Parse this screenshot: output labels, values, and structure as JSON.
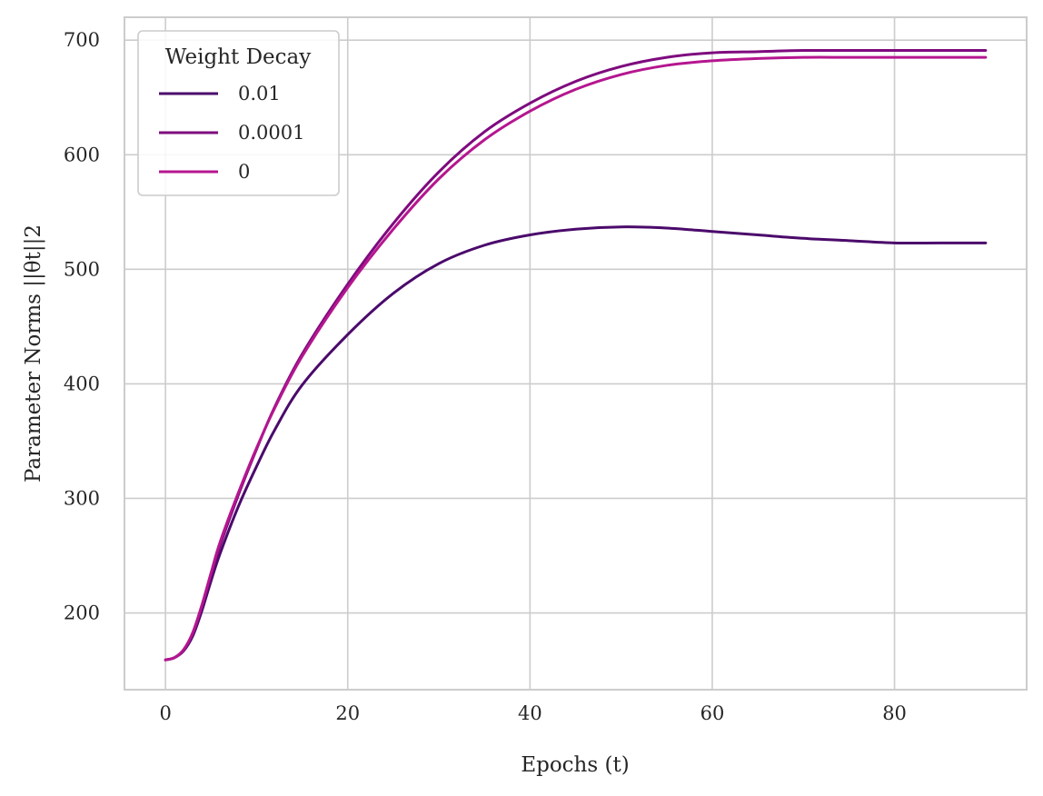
{
  "chart_data": {
    "type": "line",
    "title": "",
    "xlabel": "Epochs (t)",
    "ylabel": "Parameter Norms ||θt||2",
    "xlim": [
      -4.5,
      94.5
    ],
    "ylim": [
      133,
      720
    ],
    "xticks": [
      0,
      20,
      40,
      60,
      80
    ],
    "xtick_labels": [
      "0",
      "20",
      "40",
      "60",
      "80"
    ],
    "yticks": [
      200,
      300,
      400,
      500,
      600,
      700
    ],
    "ytick_labels": [
      "200",
      "300",
      "400",
      "500",
      "600",
      "700"
    ],
    "grid": true,
    "legend": {
      "title": "Weight Decay",
      "placement": "top-left"
    },
    "x": [
      0,
      1,
      2,
      3,
      4,
      5,
      6,
      8,
      10,
      12,
      15,
      20,
      25,
      30,
      35,
      40,
      45,
      50,
      55,
      60,
      65,
      70,
      75,
      80,
      85,
      90
    ],
    "series": [
      {
        "name": "0.01",
        "color": "#4b0a6b",
        "values": [
          159,
          161,
          167,
          180,
          202,
          228,
          252,
          293,
          328,
          360,
          399,
          443,
          479,
          505,
          521,
          530,
          535,
          537,
          536,
          533,
          530,
          527,
          525,
          523,
          523,
          523
        ]
      },
      {
        "name": "0.0001",
        "color": "#7e0a7e",
        "values": [
          159,
          161,
          168,
          182,
          206,
          233,
          259,
          303,
          343,
          380,
          426,
          487,
          540,
          585,
          620,
          645,
          664,
          677,
          685,
          689,
          690,
          691,
          691,
          691,
          691,
          691
        ]
      },
      {
        "name": "0",
        "color": "#b5168f",
        "values": [
          159,
          161,
          168,
          183,
          207,
          235,
          262,
          305,
          344,
          379,
          424,
          484,
          535,
          579,
          613,
          638,
          657,
          670,
          678,
          682,
          684,
          685,
          685,
          685,
          685,
          685
        ]
      }
    ]
  }
}
